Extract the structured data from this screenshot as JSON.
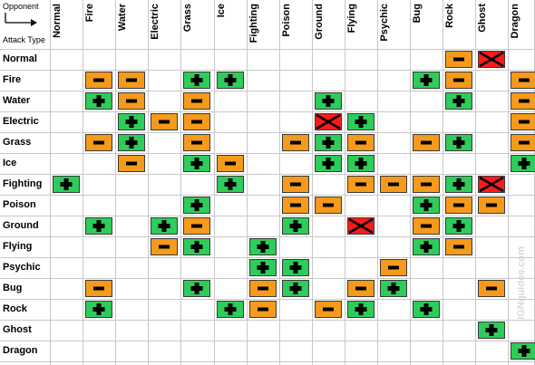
{
  "corner": {
    "top_label": "Opponent",
    "bottom_label": "Attack Type"
  },
  "columns": [
    "Normal",
    "Fire",
    "Water",
    "Electric",
    "Grass",
    "Ice",
    "Fighting",
    "Poison",
    "Ground",
    "Flying",
    "Psychic",
    "Bug",
    "Rock",
    "Ghost",
    "Dragon"
  ],
  "rows": [
    {
      "label": "Normal",
      "cells": [
        "",
        "",
        "",
        "",
        "",
        "",
        "",
        "",
        "",
        "",
        "",
        "",
        "-",
        "x",
        ""
      ]
    },
    {
      "label": "Fire",
      "cells": [
        "",
        "-",
        "-",
        "",
        "+",
        "+",
        "",
        "",
        "",
        "",
        "",
        "+",
        "-",
        "",
        "-"
      ]
    },
    {
      "label": "Water",
      "cells": [
        "",
        "+",
        "-",
        "",
        "-",
        "",
        "",
        "",
        "+",
        "",
        "",
        "",
        "+",
        "",
        "-"
      ]
    },
    {
      "label": "Electric",
      "cells": [
        "",
        "",
        "+",
        "-",
        "-",
        "",
        "",
        "",
        "x",
        "+",
        "",
        "",
        "",
        "",
        "-"
      ]
    },
    {
      "label": "Grass",
      "cells": [
        "",
        "-",
        "+",
        "",
        "-",
        "",
        "",
        "-",
        "+",
        "-",
        "",
        "-",
        "+",
        "",
        "-"
      ]
    },
    {
      "label": "Ice",
      "cells": [
        "",
        "",
        "-",
        "",
        "+",
        "-",
        "",
        "",
        "+",
        "+",
        "",
        "",
        "",
        "",
        "+"
      ]
    },
    {
      "label": "Fighting",
      "cells": [
        "+",
        "",
        "",
        "",
        "",
        "+",
        "",
        "-",
        "",
        "-",
        "-",
        "-",
        "+",
        "x",
        ""
      ]
    },
    {
      "label": "Poison",
      "cells": [
        "",
        "",
        "",
        "",
        "+",
        "",
        "",
        "-",
        "-",
        "",
        "",
        "+",
        "-",
        "-",
        ""
      ]
    },
    {
      "label": "Ground",
      "cells": [
        "",
        "+",
        "",
        "+",
        "-",
        "",
        "",
        "+",
        "",
        "x",
        "",
        "-",
        "+",
        "",
        ""
      ]
    },
    {
      "label": "Flying",
      "cells": [
        "",
        "",
        "",
        "-",
        "+",
        "",
        "+",
        "",
        "",
        "",
        "",
        "+",
        "-",
        "",
        ""
      ]
    },
    {
      "label": "Psychic",
      "cells": [
        "",
        "",
        "",
        "",
        "",
        "",
        "+",
        "+",
        "",
        "",
        "-",
        "",
        "",
        "",
        ""
      ]
    },
    {
      "label": "Bug",
      "cells": [
        "",
        "-",
        "",
        "",
        "+",
        "",
        "-",
        "+",
        "",
        "-",
        "+",
        "",
        "",
        "-",
        ""
      ]
    },
    {
      "label": "Rock",
      "cells": [
        "",
        "+",
        "",
        "",
        "",
        "+",
        "-",
        "",
        "-",
        "+",
        "",
        "+",
        "",
        "",
        ""
      ]
    },
    {
      "label": "Ghost",
      "cells": [
        "",
        "",
        "",
        "",
        "",
        "",
        "",
        "",
        "",
        "",
        "",
        "",
        "",
        "+",
        ""
      ]
    },
    {
      "label": "Dragon",
      "cells": [
        "",
        "",
        "",
        "",
        "",
        "",
        "",
        "",
        "",
        "",
        "",
        "",
        "",
        "",
        "+"
      ]
    }
  ],
  "legend_symbols": {
    "plus": "+",
    "minus": "-",
    "none": "x"
  },
  "colors": {
    "plus": "#2ecc5a",
    "minus": "#f59a1a",
    "none": "#ff1a1a",
    "grid": "#c8c8c8"
  },
  "watermark": "IGNguides.com"
}
